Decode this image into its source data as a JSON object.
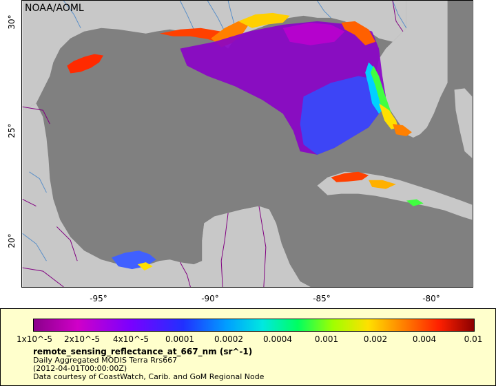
{
  "map": {
    "credit": "NOAA/AOML",
    "lat_ticks": [
      "30°",
      "25°",
      "20°"
    ],
    "lon_ticks": [
      "-95°",
      "-90°",
      "-85°",
      "-80°"
    ],
    "colors": {
      "ocean_nodata": "#808080",
      "land": "#c8c8c8",
      "borders": "#800080",
      "rivers": "#5a8fc8"
    }
  },
  "legend": {
    "tick_labels": [
      "1x10^-5",
      "2x10^-5",
      "4x10^-5",
      "0.0001",
      "0.0002",
      "0.0004",
      "0.001",
      "0.002",
      "0.004",
      "0.01"
    ],
    "title": "remote_sensing_reflectance_at_667_nm (sr^-1)",
    "line1": "Daily Aggregated MODIS Terra Rrs667",
    "line2": "(2012-04-01T00:00:00Z)",
    "line3": "Data courtesy of CoastWatch, Carib. and GoM Regional Node"
  }
}
